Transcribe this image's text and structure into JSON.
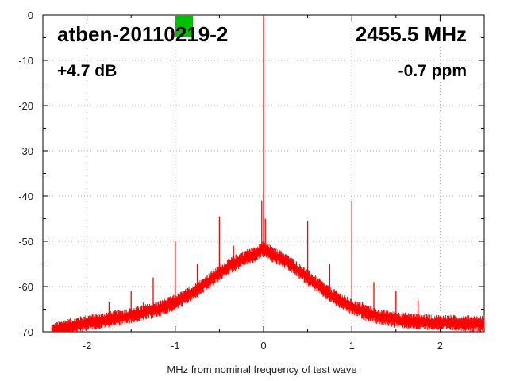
{
  "chart_data": {
    "type": "line",
    "title": "atben-20110219-2",
    "annotations": {
      "frequency": "2455.5 MHz",
      "gain": "+4.7 dB",
      "offset": "-0.7 ppm"
    },
    "xlabel": "MHz from nominal frequency of test wave",
    "ylabel": "",
    "xlim": [
      -2.5,
      2.5
    ],
    "ylim": [
      -70,
      0
    ],
    "xticks": [
      -2,
      -1,
      0,
      1,
      2
    ],
    "xtick_labels": [
      "-2",
      "-1",
      "0",
      "1",
      "2"
    ],
    "yticks": [
      0,
      -10,
      -20,
      -30,
      -40,
      -50,
      -60,
      -70
    ],
    "ytick_labels": [
      "0",
      "-10",
      "-20",
      "-30",
      "-40",
      "-50",
      "-60",
      "-70"
    ],
    "grid": true,
    "series_color": "#ff0000",
    "indicator_color": "#00c000",
    "series": [
      {
        "x": [
          -2.4,
          -2.3,
          -2.2,
          -2.1,
          -2.0,
          -1.9,
          -1.8,
          -1.7,
          -1.6,
          -1.5,
          -1.4,
          -1.3,
          -1.2,
          -1.1,
          -1.0,
          -0.9,
          -0.8,
          -0.7,
          -0.6,
          -0.5,
          -0.4,
          -0.3,
          -0.2,
          -0.1,
          -0.05,
          0.0,
          0.05,
          0.1,
          0.2,
          0.3,
          0.4,
          0.5,
          0.6,
          0.7,
          0.8,
          0.9,
          1.0,
          1.1,
          1.2,
          1.3,
          1.4,
          1.5,
          1.6,
          1.7,
          1.8,
          1.9,
          2.0,
          2.1,
          2.2,
          2.3,
          2.4,
          2.5
        ],
        "y": [
          -70,
          -69.3,
          -68.8,
          -68.4,
          -68.0,
          -67.7,
          -67.4,
          -67.1,
          -66.8,
          -66.4,
          -66.0,
          -65.5,
          -65.0,
          -64.3,
          -63.5,
          -62.5,
          -61.3,
          -60.0,
          -58.5,
          -57.0,
          -55.7,
          -54.5,
          -53.5,
          -53.0,
          -52.0,
          -51.8,
          -52.2,
          -53.0,
          -53.8,
          -55.0,
          -56.5,
          -58.0,
          -59.5,
          -61.0,
          -62.3,
          -63.5,
          -64.5,
          -65.3,
          -66.0,
          -66.6,
          -67.0,
          -67.3,
          -67.5,
          -67.7,
          -67.8,
          -67.9,
          -68.0,
          -68.0,
          -68.1,
          -68.1,
          -68.2,
          -68.2
        ]
      }
    ],
    "spikes": [
      {
        "x": 0.0,
        "y": 0
      },
      {
        "x": -0.02,
        "y": -41
      },
      {
        "x": 0.02,
        "y": -45
      },
      {
        "x": -0.5,
        "y": -44.5
      },
      {
        "x": 0.5,
        "y": -45.5
      },
      {
        "x": -1.0,
        "y": -50
      },
      {
        "x": 1.0,
        "y": -41
      },
      {
        "x": -0.75,
        "y": -55
      },
      {
        "x": 0.75,
        "y": -55
      },
      {
        "x": -1.25,
        "y": -58
      },
      {
        "x": 1.25,
        "y": -59
      },
      {
        "x": -1.5,
        "y": -61
      },
      {
        "x": 1.5,
        "y": -61
      },
      {
        "x": -1.75,
        "y": -63.5
      },
      {
        "x": 1.75,
        "y": -63
      },
      {
        "x": -1.36,
        "y": -63.5
      },
      {
        "x": 1.12,
        "y": -63.5
      },
      {
        "x": -0.34,
        "y": -51
      }
    ]
  }
}
